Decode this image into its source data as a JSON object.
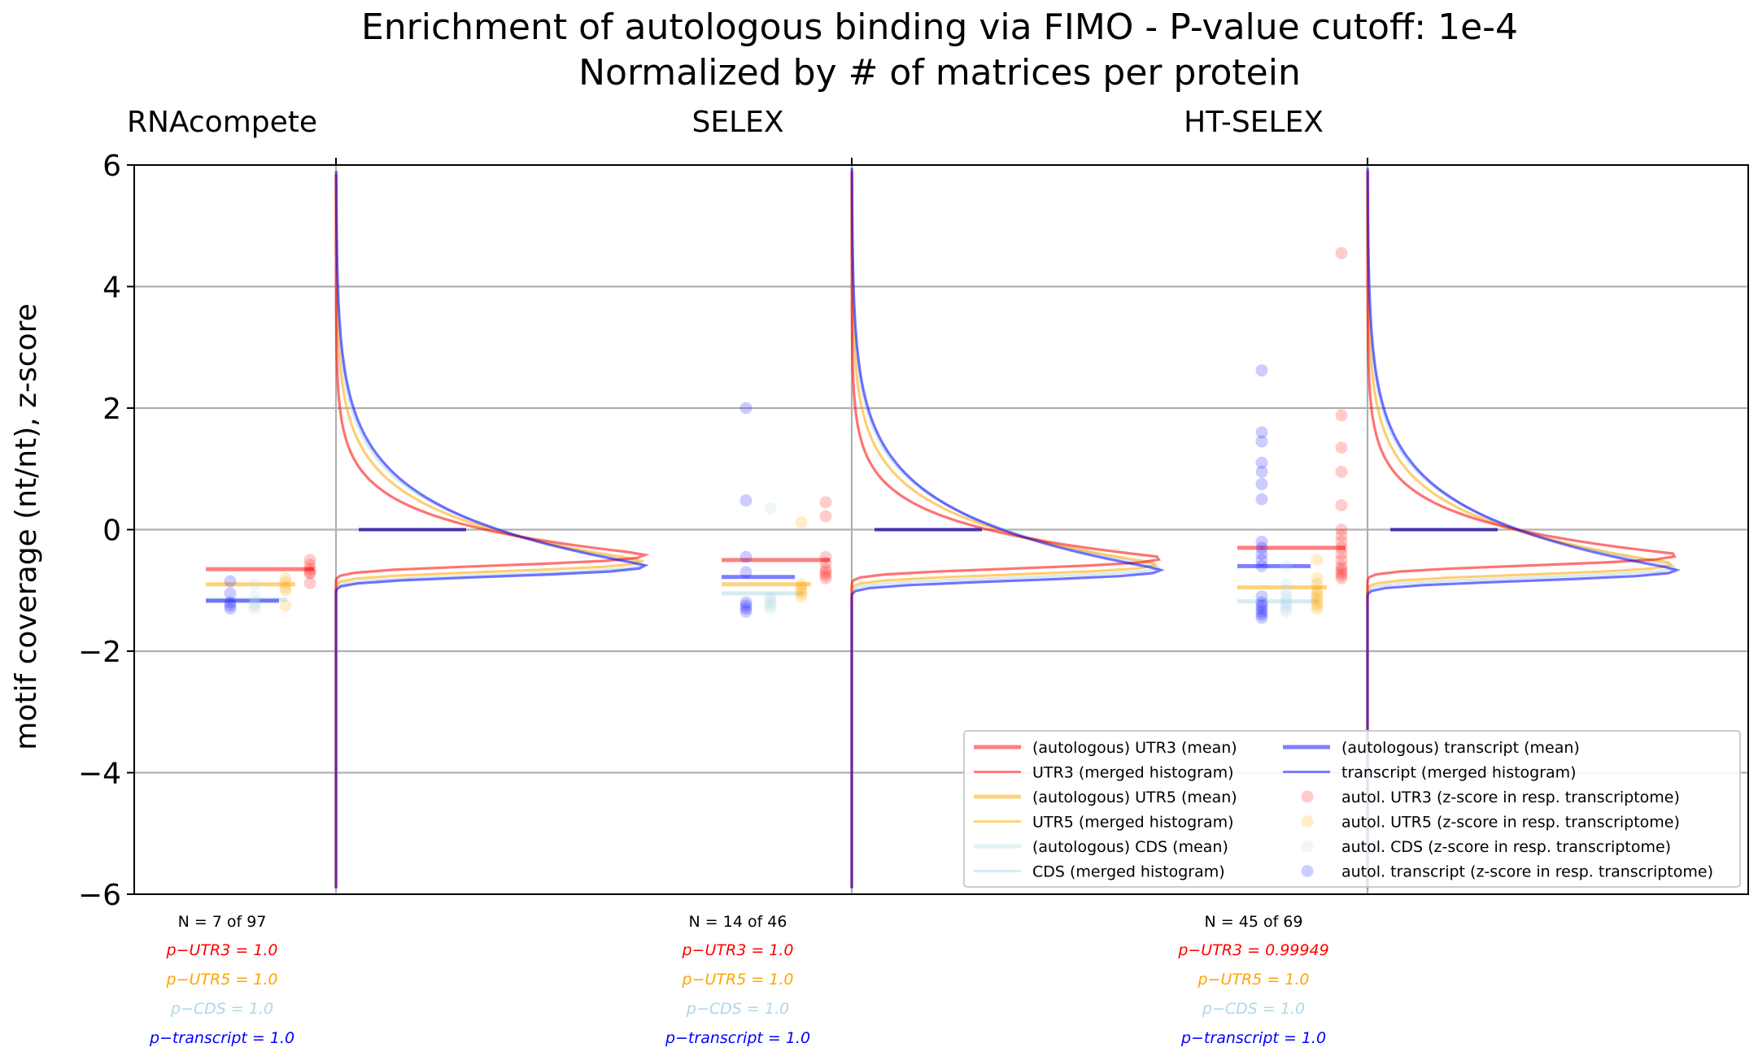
{
  "chart_data": {
    "type": "line",
    "title": "Enrichment of autologous binding via FIMO - P-value cutoff: 1e-4",
    "subtitle": "Normalized by # of matrices per protein",
    "ylabel": "motif coverage (nt/nt), z-score",
    "ylim": [
      -6,
      6
    ],
    "yticks": [
      "6",
      "4",
      "2",
      "0",
      "−2",
      "−4",
      "−6"
    ],
    "ytick_values": [
      6,
      4,
      2,
      0,
      -2,
      -4,
      -6
    ],
    "grid": true,
    "colors": {
      "UTR3": "#ff0000",
      "UTR5": "#ffa500",
      "CDS": "#add8e6",
      "transcript": "#0000ff"
    },
    "legend": {
      "placement": "lower-right",
      "entries": [
        {
          "label": "(autologous) UTR3 (mean)",
          "kind": "thick",
          "color": "#ff0000"
        },
        {
          "label": "(autologous) transcript (mean)",
          "kind": "thick",
          "color": "#0000ff"
        },
        {
          "label": "UTR3 (merged histogram)",
          "kind": "line",
          "color": "#ff0000"
        },
        {
          "label": "transcript (merged histogram)",
          "kind": "line",
          "color": "#0000ff"
        },
        {
          "label": "(autologous) UTR5 (mean)",
          "kind": "thick",
          "color": "#ffa500"
        },
        {
          "label": "autol. UTR3 (z-score in resp. transcriptome)",
          "kind": "dot",
          "color": "#ff0000"
        },
        {
          "label": "UTR5 (merged histogram)",
          "kind": "line",
          "color": "#ffa500"
        },
        {
          "label": "autol. UTR5 (z-score in resp. transcriptome)",
          "kind": "dot",
          "color": "#ffa500"
        },
        {
          "label": "(autologous) CDS (mean)",
          "kind": "thick",
          "color": "#add8e6"
        },
        {
          "label": "autol. CDS (z-score in resp. transcriptome)",
          "kind": "dot",
          "color": "#add8e6"
        },
        {
          "label": "CDS (merged histogram)",
          "kind": "line",
          "color": "#add8e6"
        },
        {
          "label": "autol. transcript (z-score in resp. transcriptome)",
          "kind": "dot",
          "color": "#0000ff"
        }
      ]
    },
    "panels": [
      {
        "name": "RNAcompete",
        "n_text": "N = 7 of 97",
        "pvals": [
          {
            "text": "p−UTR3 = 1.0",
            "color": "#ff0000"
          },
          {
            "text": "p−UTR5 = 1.0",
            "color": "#ffa500"
          },
          {
            "text": "p−CDS = 1.0",
            "color": "#add8e6"
          },
          {
            "text": "p−transcript = 1.0",
            "color": "#0000ff"
          }
        ],
        "means": {
          "UTR3": -0.65,
          "UTR5": -0.9,
          "CDS": -1.15,
          "transcript": -1.17
        },
        "points": {
          "UTR3": [
            -0.5,
            -0.58,
            -0.65,
            -0.7,
            -0.72,
            -0.88
          ],
          "UTR5": [
            -0.8,
            -0.87,
            -0.95,
            -1.0,
            -1.25
          ],
          "CDS": [
            -0.9,
            -1.1,
            -1.2,
            -1.25,
            -1.3
          ],
          "transcript": [
            -0.85,
            -1.05,
            -1.2,
            -1.25,
            -1.3
          ]
        },
        "hist_peaks": {
          "UTR3": -0.4,
          "UTR5": -0.5,
          "CDS": -0.55,
          "transcript": -0.58
        },
        "hist_tops": {
          "UTR3": 5.85,
          "UTR5": 5.85,
          "CDS": 5.9,
          "transcript": 5.9
        }
      },
      {
        "name": "SELEX",
        "n_text": "N = 14 of 46",
        "pvals": [
          {
            "text": "p−UTR3 = 1.0",
            "color": "#ff0000"
          },
          {
            "text": "p−UTR5 = 1.0",
            "color": "#ffa500"
          },
          {
            "text": "p−CDS = 1.0",
            "color": "#add8e6"
          },
          {
            "text": "p−transcript = 1.0",
            "color": "#0000ff"
          }
        ],
        "means": {
          "UTR3": -0.5,
          "UTR5": -0.9,
          "CDS": -1.05,
          "transcript": -0.78
        },
        "points": {
          "UTR3": [
            0.45,
            0.22,
            -0.45,
            -0.55,
            -0.65,
            -0.7,
            -0.75,
            -0.8
          ],
          "UTR5": [
            0.12,
            -0.9,
            -0.95,
            -1.0,
            -1.05,
            -1.1
          ],
          "CDS": [
            0.35,
            -1.1,
            -1.15,
            -1.2,
            -1.25,
            -1.3
          ],
          "transcript": [
            2.0,
            0.48,
            -0.45,
            -0.7,
            -1.2,
            -1.25,
            -1.3,
            -1.35
          ]
        },
        "hist_peaks": {
          "UTR3": -0.45,
          "UTR5": -0.55,
          "CDS": -0.6,
          "transcript": -0.65
        },
        "hist_tops": {
          "UTR3": 5.9,
          "UTR5": 5.9,
          "CDS": 5.9,
          "transcript": 5.95
        }
      },
      {
        "name": "HT-SELEX",
        "n_text": "N = 45 of 69",
        "pvals": [
          {
            "text": "p−UTR3 = 0.99949",
            "color": "#ff0000"
          },
          {
            "text": "p−UTR5 = 1.0",
            "color": "#ffa500"
          },
          {
            "text": "p−CDS = 1.0",
            "color": "#add8e6"
          },
          {
            "text": "p−transcript = 1.0",
            "color": "#0000ff"
          }
        ],
        "means": {
          "UTR3": -0.3,
          "UTR5": -0.95,
          "CDS": -1.18,
          "transcript": -0.6
        },
        "points": {
          "UTR3": [
            4.55,
            1.88,
            1.35,
            0.95,
            0.4,
            0.0,
            -0.1,
            -0.2,
            -0.3,
            -0.4,
            -0.5,
            -0.6,
            -0.65,
            -0.7,
            -0.75,
            -0.8
          ],
          "UTR5": [
            -0.5,
            -0.8,
            -0.9,
            -1.0,
            -1.05,
            -1.1,
            -1.15,
            -1.2,
            -1.25,
            -1.3
          ],
          "CDS": [
            -0.6,
            -0.9,
            -1.0,
            -1.1,
            -1.15,
            -1.2,
            -1.25,
            -1.3,
            -1.35
          ],
          "transcript": [
            2.62,
            1.6,
            1.45,
            1.1,
            0.95,
            0.75,
            0.5,
            -0.2,
            -0.3,
            -0.4,
            -0.5,
            -0.6,
            -1.1,
            -1.2,
            -1.25,
            -1.3,
            -1.35,
            -1.4,
            -1.45
          ]
        },
        "hist_peaks": {
          "UTR3": -0.4,
          "UTR5": -0.55,
          "CDS": -0.6,
          "transcript": -0.65
        },
        "hist_tops": {
          "UTR3": 5.9,
          "UTR5": 5.9,
          "CDS": 5.9,
          "transcript": 5.95
        }
      }
    ]
  }
}
